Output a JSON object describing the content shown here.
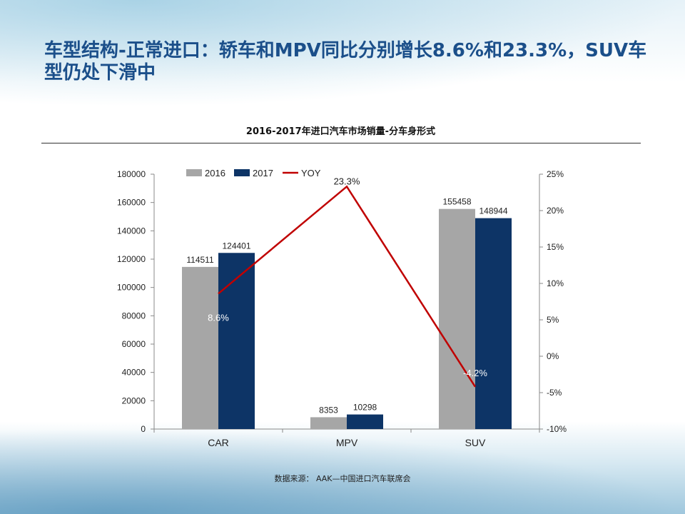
{
  "slide": {
    "title": "车型结构-正常进口：轿车和MPV同比分别增长8.6%和23.3%，SUV车型仍处下滑中",
    "source": "数据来源： AAK—中国进口汽车联席会"
  },
  "colors": {
    "title": "#1b4f8a",
    "series_2016": "#a6a6a6",
    "series_2017": "#0d3466",
    "yoy_line": "#c00000"
  },
  "chart_data": {
    "type": "bar",
    "title": "2016-2017年进口汽车市场销量-分车身形式",
    "categories": [
      "CAR",
      "MPV",
      "SUV"
    ],
    "series": [
      {
        "name": "2016",
        "values": [
          114511,
          8353,
          155458
        ],
        "labels": [
          "114511",
          "8353",
          "155458"
        ]
      },
      {
        "name": "2017",
        "values": [
          124401,
          10298,
          148944
        ],
        "labels": [
          "124401",
          "10298",
          "148944"
        ]
      }
    ],
    "line_series": {
      "name": "YOY",
      "values": [
        8.6,
        23.3,
        -4.2
      ],
      "labels": [
        "8.6%",
        "23.3%",
        "-4.2%"
      ],
      "axis": "secondary"
    },
    "ylim": [
      0,
      180000
    ],
    "y_ticks": [
      "0",
      "20000",
      "40000",
      "60000",
      "80000",
      "100000",
      "120000",
      "140000",
      "160000",
      "180000"
    ],
    "y2lim": [
      -10,
      25
    ],
    "y2_ticks": [
      "-10%",
      "-5%",
      "0%",
      "5%",
      "10%",
      "15%",
      "20%",
      "25%"
    ],
    "legend": [
      "2016",
      "2017",
      "YOY"
    ],
    "legend_position": "top",
    "grid": false
  }
}
